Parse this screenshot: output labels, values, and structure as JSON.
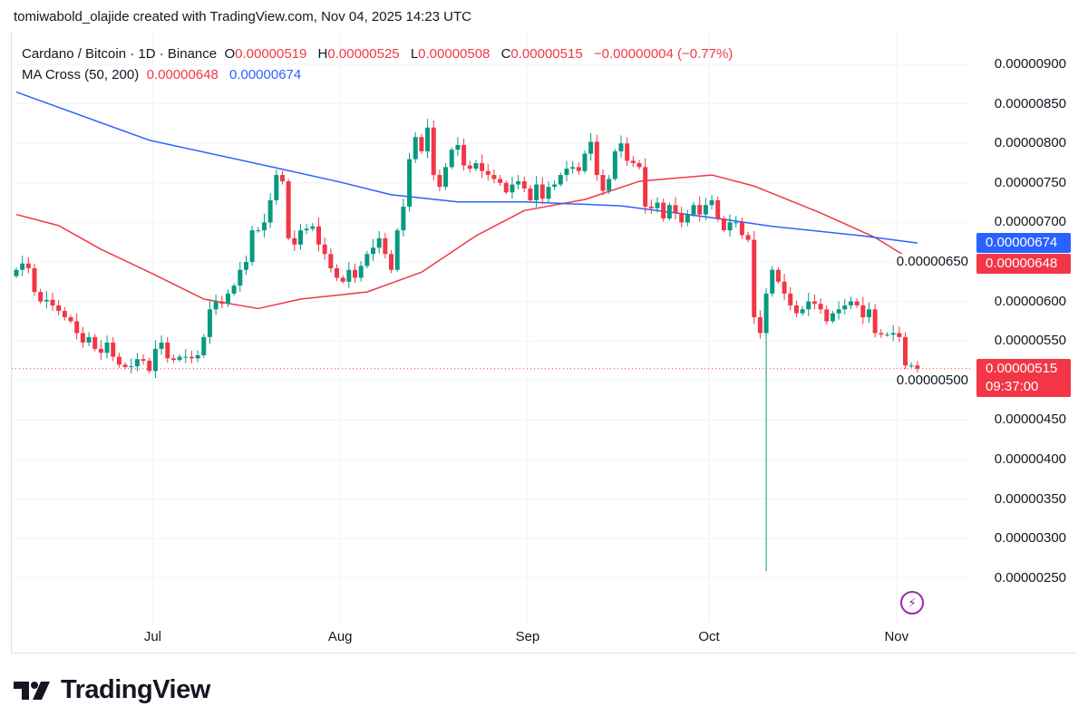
{
  "credit": "tomiwabold_olajide created with TradingView.com, Nov 04, 2025 14:23 UTC",
  "legend": {
    "symbol": "Cardano / Bitcoin · 1D · Binance",
    "o_label": "O",
    "o": "0.00000519",
    "h_label": "H",
    "h": "0.00000525",
    "l_label": "L",
    "l": "0.00000508",
    "c_label": "C",
    "c": "0.00000515",
    "change": "−0.00000004 (−0.77%)",
    "indicator": "MA Cross (50, 200)",
    "ma50": "0.00000648",
    "ma200": "0.00000674"
  },
  "price_tags": {
    "ma200": "0.00000674",
    "ma50": "0.00000648",
    "last": "0.00000515",
    "countdown": "09:37:00"
  },
  "brand": "TradingView",
  "colors": {
    "up": "#089981",
    "down": "#f23645",
    "ma50": "#f23645",
    "ma200": "#2962ff",
    "alert": "#9c27b0"
  },
  "icons": {
    "alert": "lightning-icon",
    "logo": "tradingview-logo"
  },
  "chart_data": {
    "type": "candlestick",
    "title": "Cardano / Bitcoin · 1D · Binance",
    "interval": "1D",
    "start_date": "2025-06-08",
    "end_date": "2025-11-04",
    "ylim": [
      2e-06,
      9.3e-06
    ],
    "y_ticks": [
      "0.00000900",
      "0.00000850",
      "0.00000800",
      "0.00000750",
      "0.00000700",
      "0.00000650",
      "0.00000600",
      "0.00000550",
      "0.00000500",
      "0.00000450",
      "0.00000400",
      "0.00000350",
      "0.00000300",
      "0.00000250"
    ],
    "x_ticks": [
      {
        "label": "Jul",
        "date": "2025-07-01"
      },
      {
        "label": "Aug",
        "date": "2025-08-01"
      },
      {
        "label": "Sep",
        "date": "2025-09-01"
      },
      {
        "label": "Oct",
        "date": "2025-10-01"
      },
      {
        "label": "Nov",
        "date": "2025-11-01"
      }
    ],
    "grid": true,
    "closes": [
      6.4e-06,
      6.48e-06,
      6.42e-06,
      6.12e-06,
      6e-06,
      6.02e-06,
      5.95e-06,
      5.88e-06,
      5.8e-06,
      5.75e-06,
      5.6e-06,
      5.48e-06,
      5.55e-06,
      5.4e-06,
      5.35e-06,
      5.48e-06,
      5.3e-06,
      5.2e-06,
      5.17e-06,
      5.18e-06,
      5.27e-06,
      5.25e-06,
      5.12e-06,
      5.4e-06,
      5.48e-06,
      5.28e-06,
      5.26e-06,
      5.3e-06,
      5.3e-06,
      5.28e-06,
      5.32e-06,
      5.55e-06,
      5.9e-06,
      6e-06,
      5.97e-06,
      6.1e-06,
      6.2e-06,
      6.4e-06,
      6.5e-06,
      6.9e-06,
      6.9e-06,
      7e-06,
      7.28e-06,
      7.6e-06,
      7.52e-06,
      6.8e-06,
      6.72e-06,
      6.9e-06,
      6.92e-06,
      6.95e-06,
      6.72e-06,
      6.6e-06,
      6.42e-06,
      6.3e-06,
      6.25e-06,
      6.4e-06,
      6.3e-06,
      6.45e-06,
      6.6e-06,
      6.68e-06,
      6.8e-06,
      6.6e-06,
      6.4e-06,
      6.9e-06,
      7.2e-06,
      7.8e-06,
      8.08e-06,
      7.9e-06,
      8.2e-06,
      7.6e-06,
      7.45e-06,
      7.7e-06,
      7.92e-06,
      7.98e-06,
      7.72e-06,
      7.68e-06,
      7.75e-06,
      7.65e-06,
      7.6e-06,
      7.55e-06,
      7.5e-06,
      7.38e-06,
      7.48e-06,
      7.52e-06,
      7.43e-06,
      7.28e-06,
      7.48e-06,
      7.3e-06,
      7.45e-06,
      7.48e-06,
      7.6e-06,
      7.68e-06,
      7.7e-06,
      7.65e-06,
      7.87e-06,
      8.02e-06,
      7.6e-06,
      7.4e-06,
      7.55e-06,
      7.9e-06,
      8e-06,
      7.78e-06,
      7.75e-06,
      7.7e-06,
      7.2e-06,
      7.18e-06,
      7.25e-06,
      7.05e-06,
      7.22e-06,
      7.12e-06,
      7e-06,
      7.1e-06,
      7.22e-06,
      7.1e-06,
      7.22e-06,
      7.28e-06,
      7.05e-06,
      6.9e-06,
      7e-06,
      7e-06,
      6.84e-06,
      6.78e-06,
      5.8e-06,
      5.6e-06,
      6.1e-06,
      6.4e-06,
      6.25e-06,
      6.1e-06,
      5.95e-06,
      5.85e-06,
      5.9e-06,
      6e-06,
      5.97e-06,
      5.9e-06,
      5.75e-06,
      5.85e-06,
      5.9e-06,
      5.95e-06,
      6e-06,
      5.95e-06,
      5.8e-06,
      5.9e-06,
      5.6e-06,
      5.58e-06,
      5.58e-06,
      5.6e-06,
      5.55e-06,
      5.19e-06,
      5.19e-06,
      5.15e-06
    ],
    "notable_lows": [
      {
        "date": "2025-10-10",
        "low": 2.59e-06
      }
    ],
    "last_candle": {
      "open": 5.19e-06,
      "high": 5.25e-06,
      "low": 5.08e-06,
      "close": 5.15e-06
    },
    "series": [
      {
        "name": "MA 50",
        "points": [
          [
            "2025-06-08",
            7.1e-06
          ],
          [
            "2025-06-15",
            6.96e-06
          ],
          [
            "2025-06-22",
            6.66e-06
          ],
          [
            "2025-06-30",
            6.37e-06
          ],
          [
            "2025-07-09",
            6.03e-06
          ],
          [
            "2025-07-18",
            5.91e-06
          ],
          [
            "2025-07-25",
            6.03e-06
          ],
          [
            "2025-08-05",
            6.12e-06
          ],
          [
            "2025-08-14",
            6.37e-06
          ],
          [
            "2025-08-23",
            6.83e-06
          ],
          [
            "2025-08-31",
            7.15e-06
          ],
          [
            "2025-09-10",
            7.29e-06
          ],
          [
            "2025-09-19",
            7.52e-06
          ],
          [
            "2025-10-01",
            7.6e-06
          ],
          [
            "2025-10-08",
            7.46e-06
          ],
          [
            "2025-10-19",
            7.12e-06
          ],
          [
            "2025-10-28",
            6.81e-06
          ],
          [
            "2025-11-04",
            6.48e-06
          ]
        ]
      },
      {
        "name": "MA 200",
        "points": [
          [
            "2025-06-08",
            8.65e-06
          ],
          [
            "2025-06-30",
            8.04e-06
          ],
          [
            "2025-07-21",
            7.69e-06
          ],
          [
            "2025-07-31",
            7.52e-06
          ],
          [
            "2025-08-09",
            7.35e-06
          ],
          [
            "2025-08-20",
            7.26e-06
          ],
          [
            "2025-08-31",
            7.26e-06
          ],
          [
            "2025-09-16",
            7.21e-06
          ],
          [
            "2025-10-01",
            7.06e-06
          ],
          [
            "2025-10-11",
            6.95e-06
          ],
          [
            "2025-10-26",
            6.83e-06
          ],
          [
            "2025-11-04",
            6.74e-06
          ]
        ]
      }
    ]
  }
}
